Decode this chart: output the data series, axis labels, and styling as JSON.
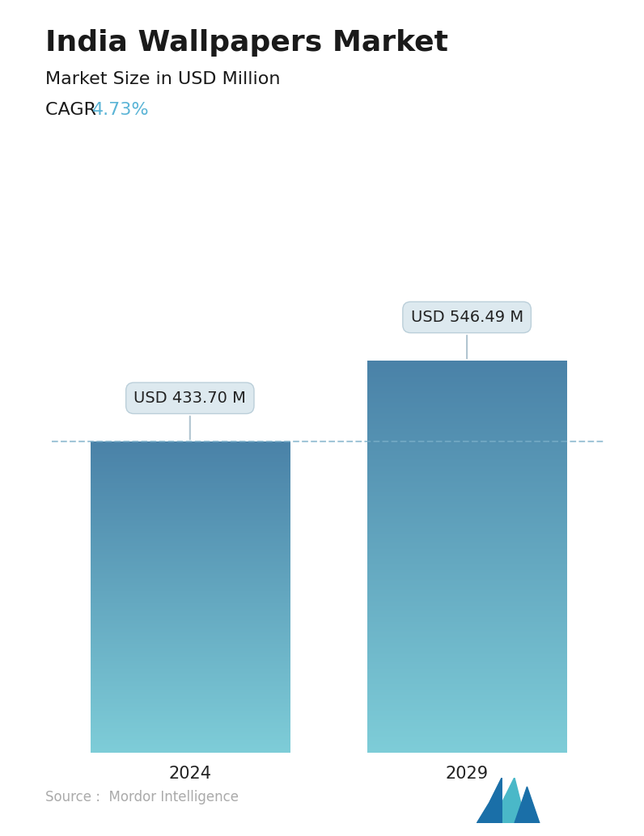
{
  "title": "India Wallpapers Market",
  "subtitle": "Market Size in USD Million",
  "cagr_label": "CAGR ",
  "cagr_value": "4.73%",
  "cagr_color": "#5ab4d6",
  "categories": [
    "2024",
    "2029"
  ],
  "values": [
    433.7,
    546.49
  ],
  "bar_labels": [
    "USD 433.70 M",
    "USD 546.49 M"
  ],
  "bar_top_color": "#4a7fa0",
  "bar_bottom_color": "#7ec8d4",
  "dashed_line_color": "#7aaec8",
  "source_text": "Source :  Mordor Intelligence",
  "source_color": "#aaaaaa",
  "background_color": "#ffffff",
  "title_fontsize": 26,
  "subtitle_fontsize": 16,
  "cagr_fontsize": 16,
  "tick_fontsize": 15,
  "label_fontsize": 14,
  "ylim_min": 0,
  "ylim_max": 700
}
